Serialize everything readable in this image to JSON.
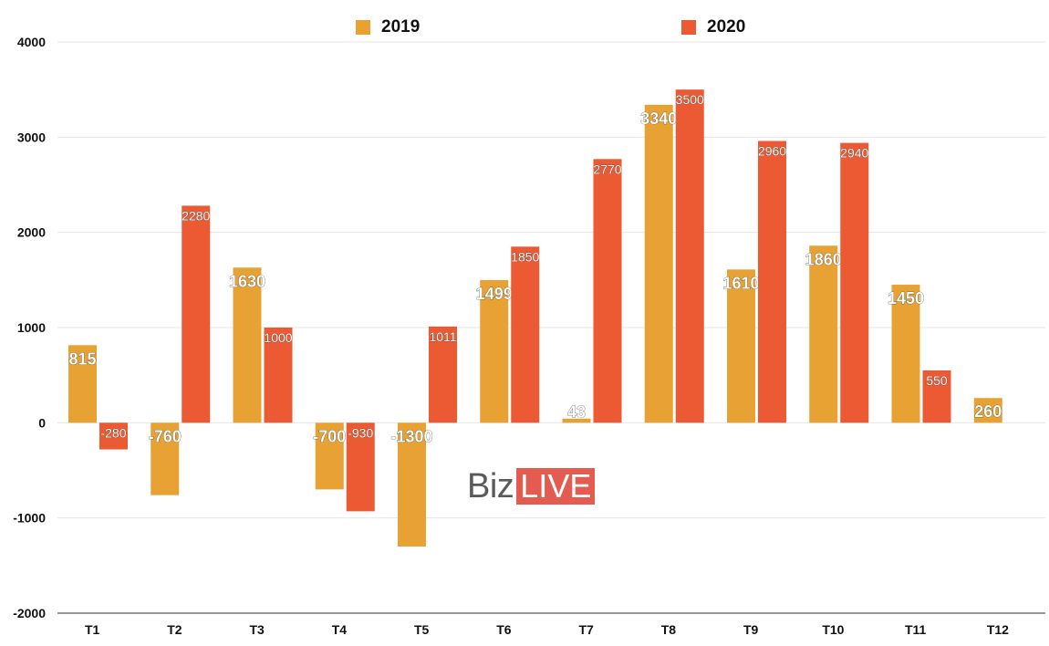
{
  "colors": {
    "series_2019": "#e8a234",
    "series_2020": "#ec5a34",
    "grid": "#e6e6e6",
    "axis": "#333333"
  },
  "legend": {
    "s2019_label": "2019",
    "s2020_label": "2020"
  },
  "watermark": {
    "left": "Biz",
    "right": "LIVE"
  },
  "chart_data": {
    "type": "bar",
    "categories": [
      "T1",
      "T2",
      "T3",
      "T4",
      "T5",
      "T6",
      "T7",
      "T8",
      "T9",
      "T10",
      "T11",
      "T12"
    ],
    "series": [
      {
        "name": "2019",
        "values": [
          815,
          -760,
          1630,
          -700,
          -1300,
          1499,
          43,
          3340,
          1610,
          1860,
          1450,
          260
        ]
      },
      {
        "name": "2020",
        "values": [
          -280,
          2280,
          1000,
          -930,
          1011,
          1850,
          2770,
          3500,
          2960,
          2940,
          550,
          null
        ]
      }
    ],
    "y_ticks": [
      "4000",
      "3000",
      "2000",
      "1000",
      "0",
      "-1000",
      "-2000"
    ],
    "ylim": [
      -2000,
      4000
    ],
    "grid": true,
    "legend_position": "top"
  }
}
